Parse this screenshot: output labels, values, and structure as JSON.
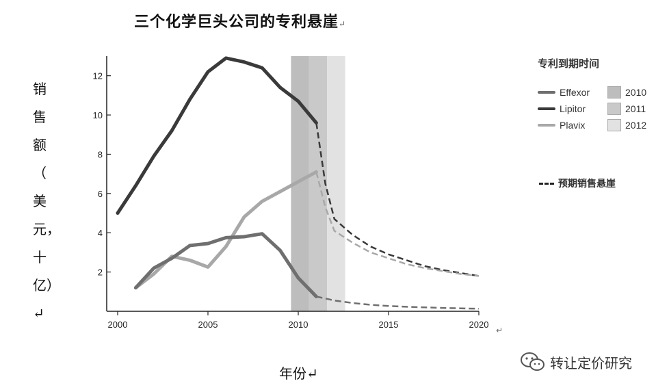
{
  "title": "三个化学巨头公司的专利悬崖",
  "para_mark": "↵",
  "ylabel_chars": [
    "销",
    "售",
    "额",
    "（",
    "美",
    "元，",
    "十",
    "亿）↵"
  ],
  "xlabel": "年份↵",
  "footer_mark": "↵",
  "watermark": "转让定价研究",
  "colors": {
    "effexor": "#6f6f6f",
    "lipitor": "#3a3a3a",
    "plavix": "#a8a8a8",
    "band2010": "#bdbdbd",
    "band2011": "#c9c9c9",
    "band2012": "#e2e2e2"
  },
  "legend": {
    "title": "专利到期时间",
    "rows": [
      {
        "name": "Effexor",
        "year": "2010"
      },
      {
        "name": "Lipitor",
        "year": "2011"
      },
      {
        "name": "Plavix",
        "year": "2012"
      }
    ],
    "dashed_label": "预期销售悬崖"
  },
  "chart_data": {
    "type": "line",
    "xlim": [
      2000,
      2020
    ],
    "ylim": [
      0,
      13
    ],
    "x_ticks": [
      "2000",
      "2005",
      "2010",
      "2015",
      "2020"
    ],
    "y_ticks": [
      "2",
      "4",
      "6",
      "8",
      "10",
      "12"
    ],
    "expiry_bands": [
      {
        "year": "2010",
        "from": 2009.6,
        "to": 2010.6
      },
      {
        "year": "2011",
        "from": 2010.6,
        "to": 2011.6
      },
      {
        "year": "2012",
        "from": 2011.6,
        "to": 2012.6
      }
    ],
    "series": [
      {
        "name": "Lipitor",
        "actual": [
          [
            2000,
            5.0
          ],
          [
            2001,
            6.4
          ],
          [
            2002,
            7.9
          ],
          [
            2003,
            9.2
          ],
          [
            2004,
            10.8
          ],
          [
            2005,
            12.2
          ],
          [
            2006,
            12.9
          ],
          [
            2007,
            12.7
          ],
          [
            2008,
            12.4
          ],
          [
            2009,
            11.4
          ],
          [
            2010,
            10.7
          ],
          [
            2011,
            9.6
          ]
        ],
        "projected": [
          [
            2011,
            9.6
          ],
          [
            2011.5,
            6.5
          ],
          [
            2012,
            4.7
          ],
          [
            2013,
            3.9
          ],
          [
            2014,
            3.3
          ],
          [
            2015,
            2.9
          ],
          [
            2016,
            2.6
          ],
          [
            2017,
            2.3
          ],
          [
            2018,
            2.1
          ],
          [
            2019,
            1.95
          ],
          [
            2020,
            1.8
          ]
        ]
      },
      {
        "name": "Plavix",
        "actual": [
          [
            2001,
            1.2
          ],
          [
            2002,
            1.9
          ],
          [
            2003,
            2.8
          ],
          [
            2004,
            2.6
          ],
          [
            2005,
            2.25
          ],
          [
            2006,
            3.3
          ],
          [
            2007,
            4.8
          ],
          [
            2008,
            5.6
          ],
          [
            2009,
            6.1
          ],
          [
            2010,
            6.6
          ],
          [
            2011,
            7.1
          ]
        ],
        "projected": [
          [
            2011,
            7.1
          ],
          [
            2011.5,
            5.3
          ],
          [
            2012,
            4.1
          ],
          [
            2013,
            3.5
          ],
          [
            2014,
            3.0
          ],
          [
            2015,
            2.7
          ],
          [
            2016,
            2.4
          ],
          [
            2017,
            2.2
          ],
          [
            2018,
            2.05
          ],
          [
            2019,
            1.9
          ],
          [
            2020,
            1.8
          ]
        ]
      },
      {
        "name": "Effexor",
        "actual": [
          [
            2001,
            1.2
          ],
          [
            2002,
            2.2
          ],
          [
            2003,
            2.7
          ],
          [
            2004,
            3.35
          ],
          [
            2005,
            3.45
          ],
          [
            2006,
            3.75
          ],
          [
            2007,
            3.8
          ],
          [
            2008,
            3.95
          ],
          [
            2009,
            3.1
          ],
          [
            2010,
            1.7
          ],
          [
            2011,
            0.75
          ]
        ],
        "projected": [
          [
            2011,
            0.75
          ],
          [
            2012,
            0.55
          ],
          [
            2013,
            0.42
          ],
          [
            2014,
            0.33
          ],
          [
            2015,
            0.27
          ],
          [
            2016,
            0.23
          ],
          [
            2017,
            0.2
          ],
          [
            2018,
            0.17
          ],
          [
            2019,
            0.15
          ],
          [
            2020,
            0.13
          ]
        ]
      }
    ]
  }
}
